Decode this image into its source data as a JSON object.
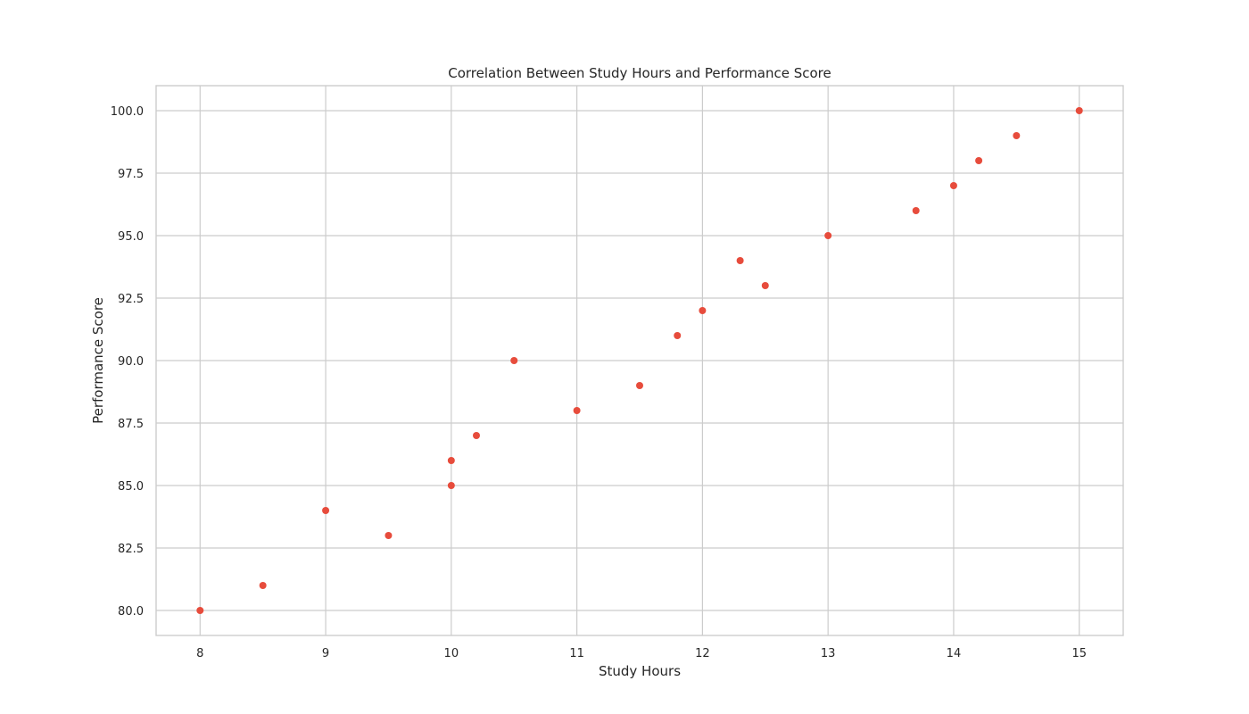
{
  "chart_data": {
    "type": "scatter",
    "title": "Correlation Between Study Hours and Performance Score",
    "xlabel": "Study Hours",
    "ylabel": "Performance Score",
    "xlim": [
      7.65,
      15.35
    ],
    "ylim": [
      79.0,
      101.0
    ],
    "xticks": [
      8,
      9,
      10,
      11,
      12,
      13,
      14,
      15
    ],
    "xtick_labels": [
      "8",
      "9",
      "10",
      "11",
      "12",
      "13",
      "14",
      "15"
    ],
    "yticks": [
      80,
      82.5,
      85,
      87.5,
      90,
      92.5,
      95,
      97.5,
      100
    ],
    "ytick_labels": [
      "80.0",
      "82.5",
      "85.0",
      "87.5",
      "90.0",
      "92.5",
      "95.0",
      "97.5",
      "100.0"
    ],
    "grid": true,
    "marker_color": "#e74c3c",
    "points": [
      {
        "x": 8.0,
        "y": 80
      },
      {
        "x": 8.5,
        "y": 81
      },
      {
        "x": 9.0,
        "y": 84
      },
      {
        "x": 9.5,
        "y": 83
      },
      {
        "x": 10.0,
        "y": 85
      },
      {
        "x": 10.0,
        "y": 86
      },
      {
        "x": 10.2,
        "y": 87
      },
      {
        "x": 10.5,
        "y": 90
      },
      {
        "x": 11.0,
        "y": 88
      },
      {
        "x": 11.5,
        "y": 89
      },
      {
        "x": 11.8,
        "y": 91
      },
      {
        "x": 12.0,
        "y": 92
      },
      {
        "x": 12.3,
        "y": 94
      },
      {
        "x": 12.5,
        "y": 93
      },
      {
        "x": 13.0,
        "y": 95
      },
      {
        "x": 13.7,
        "y": 96
      },
      {
        "x": 14.0,
        "y": 97
      },
      {
        "x": 14.2,
        "y": 98
      },
      {
        "x": 14.5,
        "y": 99
      },
      {
        "x": 15.0,
        "y": 100
      }
    ]
  }
}
